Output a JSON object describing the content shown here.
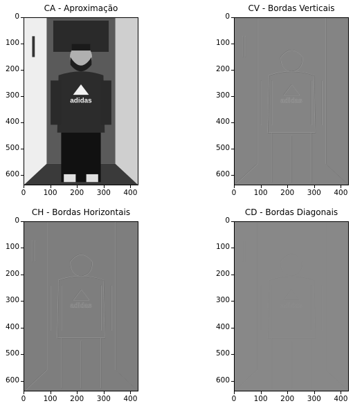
{
  "chart_data": [
    {
      "type": "image",
      "title": "CA - Aproximação",
      "shading": "photo",
      "background": "#bcbcbc",
      "xticks": [
        0,
        100,
        200,
        300,
        400
      ],
      "yticks": [
        0,
        100,
        200,
        300,
        400,
        500,
        600
      ],
      "xlim": [
        0,
        430
      ],
      "ylim": [
        640,
        0
      ]
    },
    {
      "type": "image",
      "title": "CV - Bordas Verticais",
      "shading": "edges",
      "background": "#848484",
      "xticks": [
        0,
        100,
        200,
        300,
        400
      ],
      "yticks": [
        0,
        100,
        200,
        300,
        400,
        500,
        600
      ],
      "xlim": [
        0,
        430
      ],
      "ylim": [
        640,
        0
      ]
    },
    {
      "type": "image",
      "title": "CH - Bordas Horizontais",
      "shading": "edges",
      "background": "#7e7e7e",
      "xticks": [
        0,
        100,
        200,
        300,
        400
      ],
      "yticks": [
        0,
        100,
        200,
        300,
        400,
        500,
        600
      ],
      "xlim": [
        0,
        430
      ],
      "ylim": [
        640,
        0
      ]
    },
    {
      "type": "image",
      "title": "CD - Bordas Diagonais",
      "shading": "edges-faint",
      "background": "#888888",
      "xticks": [
        0,
        100,
        200,
        300,
        400
      ],
      "yticks": [
        0,
        100,
        200,
        300,
        400,
        500,
        600
      ],
      "xlim": [
        0,
        430
      ],
      "ylim": [
        640,
        0
      ]
    }
  ],
  "logo_text": "adidas"
}
